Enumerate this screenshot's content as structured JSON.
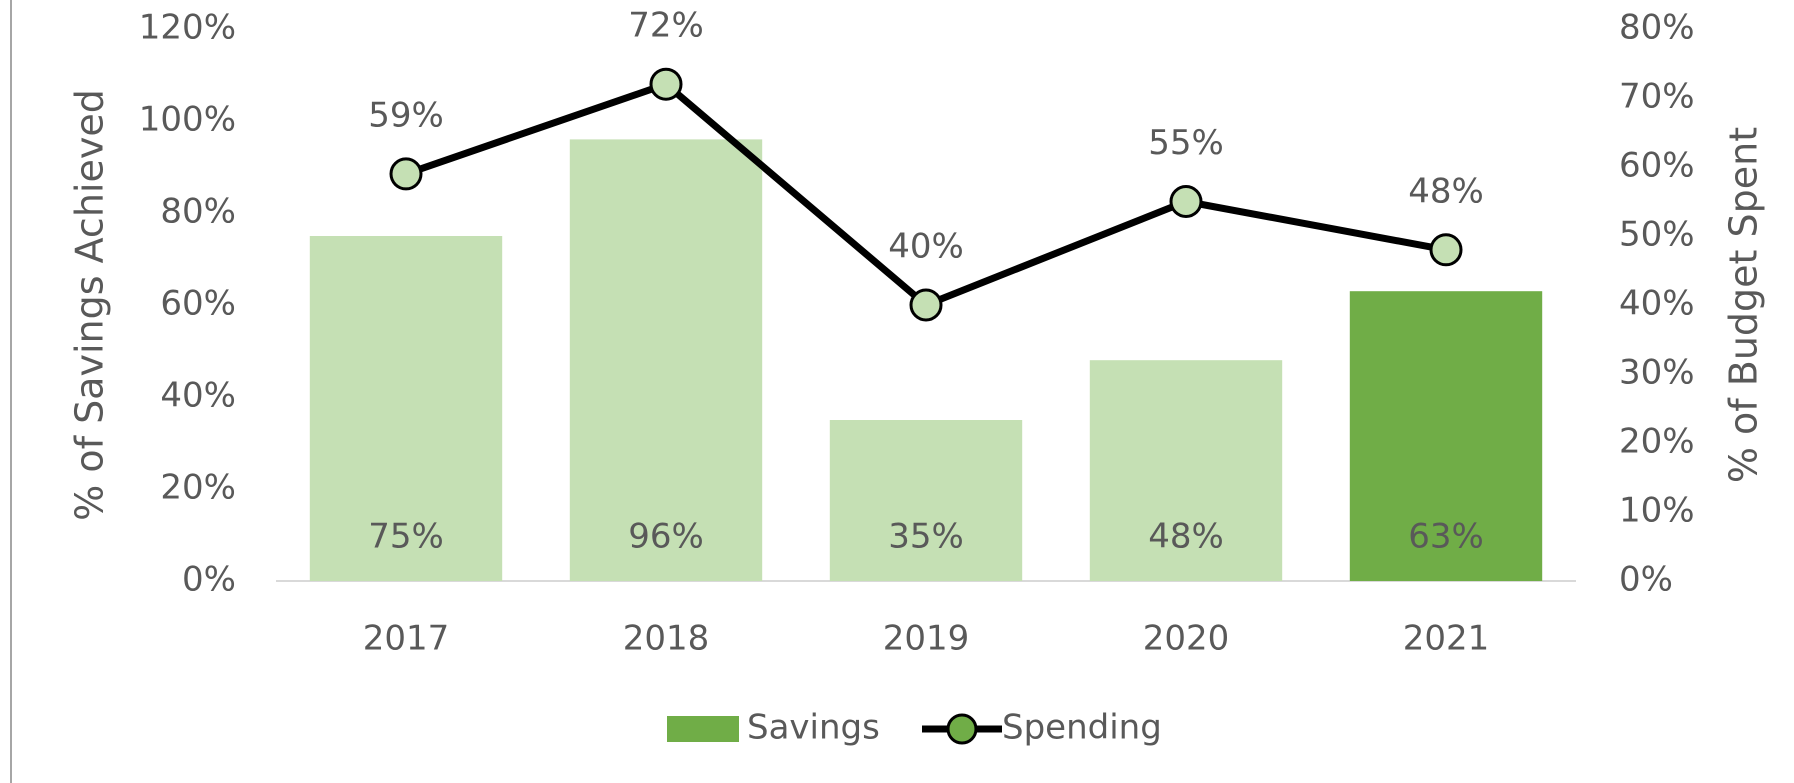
{
  "chart_data": {
    "type": "bar",
    "categories": [
      "2017",
      "2018",
      "2019",
      "2020",
      "2021"
    ],
    "series": [
      {
        "name": "Savings",
        "type": "bar",
        "color": "#70ad47",
        "colors": [
          "#c5e0b4",
          "#c5e0b4",
          "#c5e0b4",
          "#c5e0b4",
          "#70ad47"
        ],
        "values": [
          75,
          96,
          35,
          48,
          63
        ],
        "value_labels": [
          "75%",
          "96%",
          "35%",
          "48%",
          "63%"
        ]
      },
      {
        "name": "Spending",
        "type": "line",
        "axis": "y2",
        "color": "#000000",
        "marker_color": "#c5e0b4",
        "values": [
          59,
          72,
          40,
          55,
          48
        ],
        "value_labels": [
          "59%",
          "72%",
          "40%",
          "55%",
          "48%"
        ]
      }
    ],
    "ylabel": "% of Savings Achieved",
    "y2label": "% of Budget Spent",
    "ylim": [
      0,
      120
    ],
    "yticks": [
      {
        "value": 0,
        "label": "0%"
      },
      {
        "value": 20,
        "label": "20%"
      },
      {
        "value": 40,
        "label": "40%"
      },
      {
        "value": 60,
        "label": "60%"
      },
      {
        "value": 80,
        "label": "80%"
      },
      {
        "value": 100,
        "label": "100%"
      },
      {
        "value": 120,
        "label": "120%"
      }
    ],
    "y2lim": [
      0,
      80
    ],
    "y2ticks": [
      {
        "value": 0,
        "label": "0%"
      },
      {
        "value": 10,
        "label": "10%"
      },
      {
        "value": 20,
        "label": "20%"
      },
      {
        "value": 30,
        "label": "30%"
      },
      {
        "value": 40,
        "label": "40%"
      },
      {
        "value": 50,
        "label": "50%"
      },
      {
        "value": 60,
        "label": "60%"
      },
      {
        "value": 70,
        "label": "70%"
      },
      {
        "value": 80,
        "label": "80%"
      }
    ],
    "legend": "bottom"
  }
}
